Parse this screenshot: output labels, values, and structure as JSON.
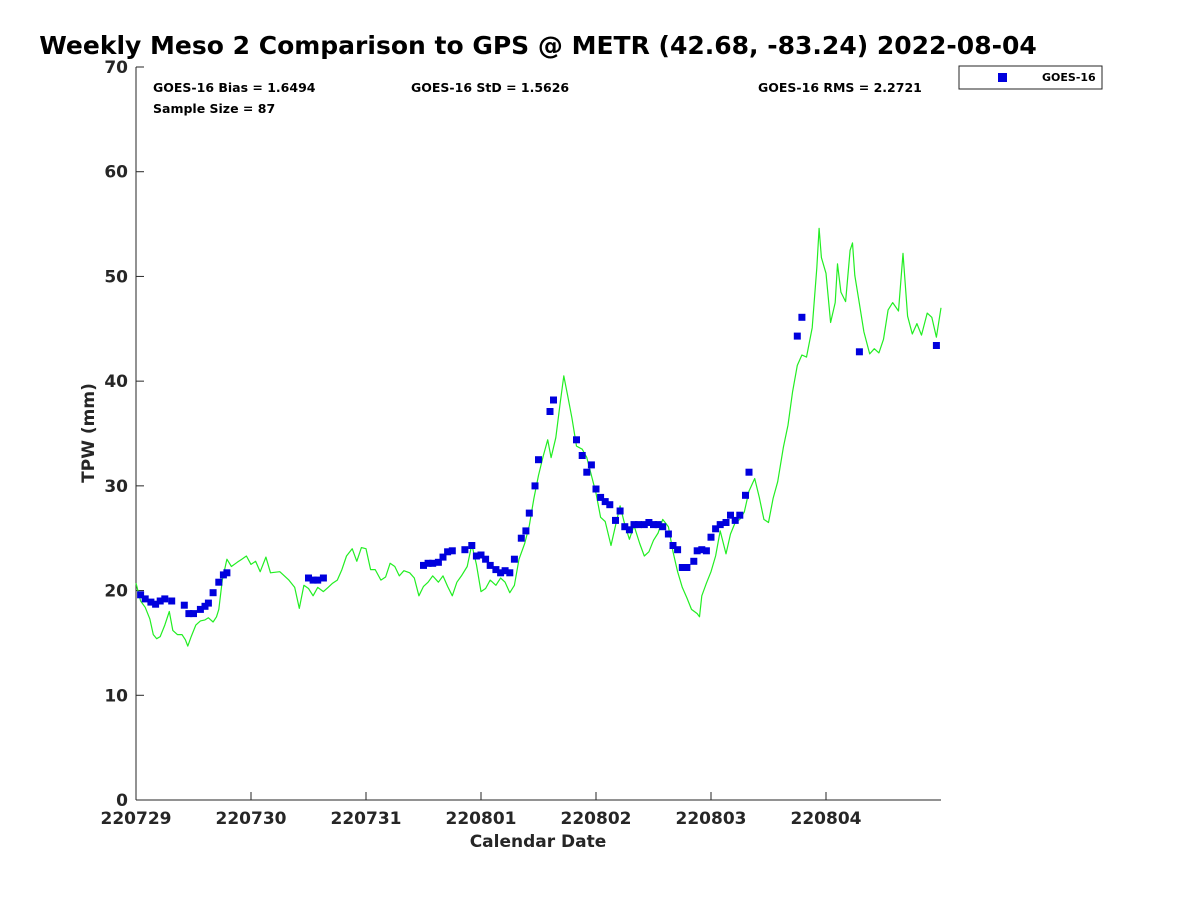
{
  "chart_data": {
    "type": "scatter",
    "title": "Weekly Meso 2 Comparison to GPS @ METR (42.68, -83.24) 2022-08-04",
    "xlabel": "Calendar Date",
    "ylabel": "TPW (mm)",
    "xlim": [
      0,
      7
    ],
    "ylim": [
      0,
      70
    ],
    "x_ticks": [
      0,
      1,
      2,
      3,
      4,
      5,
      6
    ],
    "x_tick_labels": [
      "220729",
      "220730",
      "220731",
      "220801",
      "220802",
      "220803",
      "220804"
    ],
    "y_ticks": [
      0,
      10,
      20,
      30,
      40,
      50,
      60,
      70
    ],
    "y_tick_labels": [
      "0",
      "10",
      "20",
      "30",
      "40",
      "50",
      "60",
      "70"
    ],
    "x_unit_note": "days from 220729",
    "stats": {
      "bias": "GOES-16 Bias = 1.6494",
      "std": "GOES-16 StD = 1.5626",
      "rms": "GOES-16 RMS = 2.2721",
      "sample_size": "Sample Size = 87"
    },
    "legend": {
      "position": "top-right-outside",
      "entries": [
        "GOES-16"
      ]
    },
    "series": [
      {
        "name": "GOES-16",
        "kind": "markers",
        "color": "#0000dd",
        "points": [
          [
            0.04,
            19.6
          ],
          [
            0.08,
            19.2
          ],
          [
            0.13,
            18.9
          ],
          [
            0.17,
            18.7
          ],
          [
            0.21,
            19.0
          ],
          [
            0.25,
            19.2
          ],
          [
            0.31,
            19.0
          ],
          [
            0.42,
            18.6
          ],
          [
            0.46,
            17.8
          ],
          [
            0.5,
            17.8
          ],
          [
            0.56,
            18.2
          ],
          [
            0.6,
            18.5
          ],
          [
            0.63,
            18.8
          ],
          [
            0.67,
            19.8
          ],
          [
            0.72,
            20.8
          ],
          [
            0.76,
            21.5
          ],
          [
            0.79,
            21.7
          ],
          [
            1.5,
            21.2
          ],
          [
            1.54,
            21.0
          ],
          [
            1.58,
            21.0
          ],
          [
            1.63,
            21.2
          ],
          [
            2.5,
            22.4
          ],
          [
            2.54,
            22.6
          ],
          [
            2.58,
            22.6
          ],
          [
            2.63,
            22.7
          ],
          [
            2.67,
            23.2
          ],
          [
            2.71,
            23.7
          ],
          [
            2.75,
            23.8
          ],
          [
            2.86,
            23.9
          ],
          [
            2.92,
            24.3
          ],
          [
            2.96,
            23.3
          ],
          [
            3.0,
            23.4
          ],
          [
            3.04,
            23.0
          ],
          [
            3.08,
            22.4
          ],
          [
            3.13,
            22.0
          ],
          [
            3.17,
            21.7
          ],
          [
            3.21,
            21.9
          ],
          [
            3.25,
            21.7
          ],
          [
            3.29,
            23.0
          ],
          [
            3.35,
            25.0
          ],
          [
            3.39,
            25.7
          ],
          [
            3.42,
            27.4
          ],
          [
            3.47,
            30.0
          ],
          [
            3.5,
            32.5
          ],
          [
            3.6,
            37.1
          ],
          [
            3.63,
            38.2
          ],
          [
            3.83,
            34.4
          ],
          [
            3.88,
            32.9
          ],
          [
            3.92,
            31.3
          ],
          [
            3.96,
            32.0
          ],
          [
            4.0,
            29.7
          ],
          [
            4.04,
            28.9
          ],
          [
            4.08,
            28.5
          ],
          [
            4.12,
            28.2
          ],
          [
            4.17,
            26.7
          ],
          [
            4.21,
            27.6
          ],
          [
            4.25,
            26.1
          ],
          [
            4.29,
            25.8
          ],
          [
            4.33,
            26.3
          ],
          [
            4.37,
            26.3
          ],
          [
            4.42,
            26.3
          ],
          [
            4.46,
            26.5
          ],
          [
            4.5,
            26.3
          ],
          [
            4.54,
            26.3
          ],
          [
            4.58,
            26.1
          ],
          [
            4.63,
            25.4
          ],
          [
            4.67,
            24.3
          ],
          [
            4.71,
            23.9
          ],
          [
            4.75,
            22.2
          ],
          [
            4.79,
            22.2
          ],
          [
            4.85,
            22.8
          ],
          [
            4.88,
            23.8
          ],
          [
            4.92,
            23.9
          ],
          [
            4.96,
            23.8
          ],
          [
            5.0,
            25.1
          ],
          [
            5.04,
            25.9
          ],
          [
            5.08,
            26.3
          ],
          [
            5.13,
            26.5
          ],
          [
            5.17,
            27.2
          ],
          [
            5.21,
            26.7
          ],
          [
            5.25,
            27.2
          ],
          [
            5.3,
            29.1
          ],
          [
            5.33,
            31.3
          ],
          [
            5.75,
            44.3
          ],
          [
            5.79,
            46.1
          ],
          [
            6.29,
            42.8
          ],
          [
            6.96,
            43.4
          ]
        ]
      },
      {
        "name": "GPS",
        "kind": "line",
        "color": "#22ee22",
        "points": [
          [
            0.0,
            20.7
          ],
          [
            0.04,
            19.0
          ],
          [
            0.08,
            18.4
          ],
          [
            0.12,
            17.3
          ],
          [
            0.15,
            15.8
          ],
          [
            0.18,
            15.4
          ],
          [
            0.21,
            15.6
          ],
          [
            0.25,
            16.7
          ],
          [
            0.29,
            18.0
          ],
          [
            0.32,
            16.2
          ],
          [
            0.36,
            15.8
          ],
          [
            0.4,
            15.8
          ],
          [
            0.43,
            15.3
          ],
          [
            0.45,
            14.7
          ],
          [
            0.48,
            15.6
          ],
          [
            0.52,
            16.7
          ],
          [
            0.56,
            17.1
          ],
          [
            0.6,
            17.2
          ],
          [
            0.63,
            17.4
          ],
          [
            0.67,
            17.0
          ],
          [
            0.7,
            17.5
          ],
          [
            0.72,
            18.2
          ],
          [
            0.75,
            21.0
          ],
          [
            0.79,
            23.0
          ],
          [
            0.83,
            22.3
          ],
          [
            0.88,
            22.7
          ],
          [
            0.92,
            23.0
          ],
          [
            0.96,
            23.3
          ],
          [
            1.0,
            22.5
          ],
          [
            1.04,
            22.8
          ],
          [
            1.08,
            21.8
          ],
          [
            1.13,
            23.2
          ],
          [
            1.17,
            21.7
          ],
          [
            1.25,
            21.8
          ],
          [
            1.33,
            21.0
          ],
          [
            1.38,
            20.3
          ],
          [
            1.42,
            18.3
          ],
          [
            1.46,
            20.5
          ],
          [
            1.5,
            20.2
          ],
          [
            1.54,
            19.5
          ],
          [
            1.58,
            20.3
          ],
          [
            1.63,
            19.9
          ],
          [
            1.67,
            20.3
          ],
          [
            1.71,
            20.7
          ],
          [
            1.75,
            21.0
          ],
          [
            1.79,
            22.0
          ],
          [
            1.83,
            23.3
          ],
          [
            1.88,
            24.0
          ],
          [
            1.92,
            22.8
          ],
          [
            1.96,
            24.1
          ],
          [
            2.0,
            24.0
          ],
          [
            2.04,
            22.0
          ],
          [
            2.08,
            22.0
          ],
          [
            2.13,
            21.0
          ],
          [
            2.17,
            21.3
          ],
          [
            2.21,
            22.6
          ],
          [
            2.25,
            22.3
          ],
          [
            2.29,
            21.4
          ],
          [
            2.33,
            21.9
          ],
          [
            2.38,
            21.7
          ],
          [
            2.42,
            21.2
          ],
          [
            2.46,
            19.5
          ],
          [
            2.5,
            20.4
          ],
          [
            2.54,
            20.8
          ],
          [
            2.58,
            21.4
          ],
          [
            2.63,
            20.8
          ],
          [
            2.67,
            21.4
          ],
          [
            2.71,
            20.4
          ],
          [
            2.75,
            19.5
          ],
          [
            2.79,
            20.8
          ],
          [
            2.83,
            21.4
          ],
          [
            2.88,
            22.3
          ],
          [
            2.92,
            24.4
          ],
          [
            2.96,
            22.5
          ],
          [
            3.0,
            19.9
          ],
          [
            3.04,
            20.2
          ],
          [
            3.08,
            21.0
          ],
          [
            3.13,
            20.5
          ],
          [
            3.17,
            21.2
          ],
          [
            3.21,
            20.8
          ],
          [
            3.25,
            19.8
          ],
          [
            3.29,
            20.5
          ],
          [
            3.33,
            23.0
          ],
          [
            3.38,
            24.5
          ],
          [
            3.42,
            26.2
          ],
          [
            3.46,
            28.8
          ],
          [
            3.5,
            31.0
          ],
          [
            3.54,
            32.8
          ],
          [
            3.58,
            34.4
          ],
          [
            3.61,
            32.7
          ],
          [
            3.65,
            34.6
          ],
          [
            3.69,
            38.0
          ],
          [
            3.72,
            40.5
          ],
          [
            3.75,
            38.8
          ],
          [
            3.79,
            36.5
          ],
          [
            3.83,
            33.8
          ],
          [
            3.88,
            33.5
          ],
          [
            3.92,
            32.7
          ],
          [
            3.96,
            31.0
          ],
          [
            4.0,
            29.3
          ],
          [
            4.04,
            27.0
          ],
          [
            4.08,
            26.6
          ],
          [
            4.13,
            24.3
          ],
          [
            4.17,
            26.2
          ],
          [
            4.21,
            28.1
          ],
          [
            4.25,
            26.3
          ],
          [
            4.29,
            24.9
          ],
          [
            4.33,
            26.2
          ],
          [
            4.38,
            24.5
          ],
          [
            4.42,
            23.3
          ],
          [
            4.46,
            23.7
          ],
          [
            4.5,
            24.8
          ],
          [
            4.54,
            25.5
          ],
          [
            4.58,
            26.8
          ],
          [
            4.63,
            26.1
          ],
          [
            4.67,
            23.7
          ],
          [
            4.71,
            21.8
          ],
          [
            4.75,
            20.3
          ],
          [
            4.79,
            19.3
          ],
          [
            4.83,
            18.2
          ],
          [
            4.88,
            17.8
          ],
          [
            4.9,
            17.5
          ],
          [
            4.92,
            19.5
          ],
          [
            4.96,
            20.7
          ],
          [
            5.0,
            21.8
          ],
          [
            5.04,
            23.3
          ],
          [
            5.08,
            25.7
          ],
          [
            5.13,
            23.5
          ],
          [
            5.17,
            25.4
          ],
          [
            5.21,
            26.5
          ],
          [
            5.25,
            26.8
          ],
          [
            5.29,
            27.5
          ],
          [
            5.33,
            29.5
          ],
          [
            5.38,
            30.7
          ],
          [
            5.42,
            28.9
          ],
          [
            5.46,
            26.8
          ],
          [
            5.5,
            26.5
          ],
          [
            5.54,
            28.8
          ],
          [
            5.58,
            30.4
          ],
          [
            5.63,
            33.7
          ],
          [
            5.67,
            35.8
          ],
          [
            5.71,
            39.0
          ],
          [
            5.75,
            41.5
          ],
          [
            5.79,
            42.5
          ],
          [
            5.83,
            42.3
          ],
          [
            5.88,
            45.1
          ],
          [
            5.92,
            50.8
          ],
          [
            5.94,
            54.6
          ],
          [
            5.96,
            51.8
          ],
          [
            6.0,
            50.3
          ],
          [
            6.04,
            45.6
          ],
          [
            6.08,
            47.5
          ],
          [
            6.1,
            51.2
          ],
          [
            6.13,
            48.5
          ],
          [
            6.17,
            47.6
          ],
          [
            6.21,
            52.5
          ],
          [
            6.23,
            53.2
          ],
          [
            6.25,
            50.1
          ],
          [
            6.29,
            47.4
          ],
          [
            6.33,
            44.7
          ],
          [
            6.38,
            42.6
          ],
          [
            6.42,
            43.1
          ],
          [
            6.46,
            42.7
          ],
          [
            6.5,
            44.0
          ],
          [
            6.54,
            46.8
          ],
          [
            6.58,
            47.5
          ],
          [
            6.63,
            46.7
          ],
          [
            6.67,
            52.2
          ],
          [
            6.71,
            46.2
          ],
          [
            6.75,
            44.5
          ],
          [
            6.79,
            45.5
          ],
          [
            6.83,
            44.4
          ],
          [
            6.88,
            46.5
          ],
          [
            6.92,
            46.1
          ],
          [
            6.96,
            44.2
          ],
          [
            7.0,
            47.0
          ]
        ]
      }
    ]
  },
  "colors": {
    "goes_marker": "#0000dd",
    "gps_line": "#22ee22",
    "axis": "#262626"
  }
}
